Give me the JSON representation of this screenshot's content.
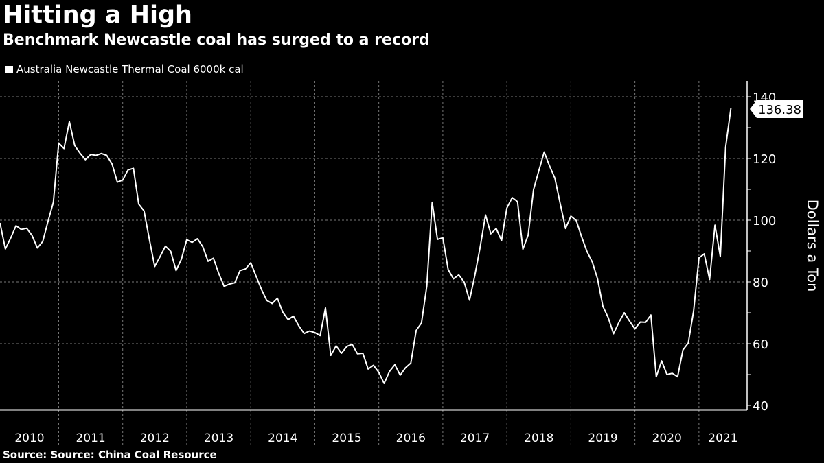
{
  "header": {
    "title": "Hitting a High",
    "subtitle": "Benchmark Newcastle coal has surged to a record"
  },
  "legend": {
    "label": "Australia Newcastle Thermal Coal 6000k cal"
  },
  "footer": {
    "source": "Source: Source: China Coal Resource"
  },
  "colors": {
    "background": "#000000",
    "line": "#ffffff",
    "grid": "#777777"
  },
  "chart_data": {
    "type": "line",
    "title": "Hitting a High",
    "subtitle": "Benchmark Newcastle coal has surged to a record",
    "ylabel": "Dollars a Ton",
    "xlabel": "",
    "ylim": [
      40,
      140
    ],
    "y_ticks": [
      "40",
      "60",
      "80",
      "100",
      "120",
      "140"
    ],
    "x_tick_labels": [
      "2010",
      "2011",
      "2012",
      "2013",
      "2014",
      "2015",
      "2016",
      "2017",
      "2018",
      "2019",
      "2020",
      "2021"
    ],
    "grid": true,
    "y_axis_side": "right",
    "legend_position": "top-left",
    "last_value_label": "136.38",
    "x_start": "2010-02",
    "x_end": "2021-07",
    "x_frequency": "monthly",
    "series": [
      {
        "name": "Australia Newcastle Thermal Coal 6000k cal",
        "values": [
          99.1,
          90.7,
          94.2,
          98.2,
          97.0,
          97.4,
          95.1,
          91.0,
          93.1,
          99.6,
          105.8,
          125.0,
          123.2,
          131.9,
          124.2,
          121.7,
          119.6,
          121.3,
          121.0,
          121.6,
          121.0,
          118.2,
          112.3,
          113.0,
          116.3,
          116.8,
          105.2,
          103.0,
          93.7,
          85.0,
          88.2,
          91.6,
          89.9,
          83.7,
          87.4,
          93.7,
          92.8,
          94.0,
          91.4,
          86.7,
          87.7,
          82.7,
          78.6,
          79.3,
          79.7,
          83.7,
          84.2,
          86.2,
          81.8,
          77.6,
          74.0,
          73.0,
          74.7,
          70.2,
          67.8,
          68.9,
          65.8,
          63.3,
          64.1,
          63.6,
          62.6,
          71.6,
          56.2,
          59.3,
          56.9,
          59.1,
          59.8,
          56.7,
          56.9,
          51.8,
          53.0,
          50.7,
          47.1,
          51.0,
          53.2,
          49.8,
          52.2,
          53.7,
          64.3,
          66.7,
          78.7,
          105.8,
          93.8,
          94.3,
          84.0,
          81.0,
          82.3,
          79.9,
          74.1,
          82.1,
          91.3,
          101.7,
          95.6,
          97.3,
          93.4,
          103.9,
          107.3,
          106.0,
          90.6,
          95.2,
          109.9,
          116.1,
          122.1,
          117.6,
          113.6,
          105.4,
          97.3,
          101.3,
          99.9,
          94.7,
          89.9,
          86.5,
          81.0,
          72.1,
          68.4,
          63.2,
          66.9,
          70.0,
          67.3,
          64.8,
          67.0,
          66.9,
          69.3,
          49.3,
          54.4,
          50.0,
          50.4,
          49.3,
          58.0,
          60.2,
          70.6,
          87.8,
          89.1,
          80.8,
          98.4,
          88.2,
          123.6,
          136.38
        ]
      }
    ]
  }
}
